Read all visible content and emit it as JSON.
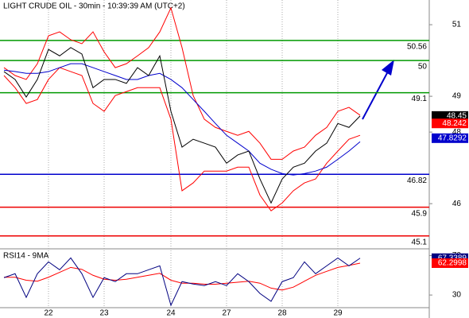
{
  "chart_data": [
    {
      "type": "line",
      "title": "LIGHT CRUDE OIL - 30min - 10:39:39 AM (UTC+2)",
      "categories": [
        null,
        null,
        null,
        null,
        "22",
        null,
        null,
        null,
        null,
        "23",
        null,
        null,
        null,
        null,
        null,
        "24",
        null,
        null,
        null,
        null,
        "27",
        null,
        null,
        null,
        null,
        "28",
        null,
        null,
        null,
        null,
        "29",
        null,
        null
      ],
      "series": [
        {
          "color": "#ff0000",
          "values": [
            49.8,
            49.58,
            49.47,
            49.91,
            50.69,
            50.8,
            50.58,
            50.47,
            50.8,
            50.24,
            49.8,
            49.91,
            50.13,
            50.36,
            50.8,
            51.47,
            50.36,
            49.02,
            48.36,
            48.13,
            48.02,
            47.91,
            48.02,
            47.69,
            47.24,
            47.24,
            47.47,
            47.58,
            47.91,
            48.13,
            48.58,
            48.69,
            48.47
          ]
        },
        {
          "color": "#ff0000",
          "values": [
            49.58,
            49.24,
            48.8,
            48.91,
            49.47,
            49.8,
            49.69,
            49.58,
            48.8,
            48.58,
            49.02,
            49.13,
            49.24,
            49.24,
            49.24,
            48.36,
            46.36,
            46.58,
            46.91,
            46.91,
            46.91,
            47.02,
            47.02,
            46.24,
            45.8,
            46.02,
            46.36,
            46.58,
            46.69,
            47.13,
            47.47,
            47.8,
            47.91
          ]
        },
        {
          "color": "#0000cc",
          "values": [
            49.73,
            49.69,
            49.64,
            49.64,
            49.69,
            49.8,
            49.91,
            49.91,
            49.8,
            49.69,
            49.58,
            49.47,
            49.47,
            49.58,
            49.64,
            49.47,
            49.24,
            48.91,
            48.58,
            48.24,
            47.91,
            47.69,
            47.47,
            47.13,
            46.96,
            46.84,
            46.8,
            46.84,
            46.91,
            47.02,
            47.24,
            47.47,
            47.73
          ]
        },
        {
          "color": "#000000",
          "values": [
            49.69,
            49.47,
            48.98,
            49.47,
            50.31,
            50.13,
            50.36,
            50.18,
            49.24,
            49.47,
            49.47,
            49.36,
            49.8,
            49.58,
            50.13,
            48.58,
            47.58,
            47.8,
            47.69,
            47.58,
            47.13,
            47.36,
            47.47,
            46.69,
            46.02,
            46.69,
            47.02,
            47.13,
            47.47,
            47.69,
            48.24,
            48.13,
            48.45
          ]
        }
      ],
      "ylim": [
        44.76,
        51.69
      ],
      "yticks": [
        46,
        48,
        49,
        51
      ],
      "levels": [
        {
          "value": 50.56,
          "color": "#009900"
        },
        {
          "value": 50,
          "color": "#009900"
        },
        {
          "value": 49.1,
          "color": "#009900"
        },
        {
          "value": 46.82,
          "color": "#0000cc"
        },
        {
          "value": 45.9,
          "color": "#ee0000"
        },
        {
          "value": 45.1,
          "color": "#ee0000"
        }
      ],
      "price_tags": [
        {
          "value": 48.45,
          "color": "#000000"
        },
        {
          "value": 48.242,
          "color": "#ff0000"
        },
        {
          "value": 47.8292,
          "color": "#0000cc"
        }
      ],
      "grid": true
    },
    {
      "type": "line",
      "title": "RSI14 - 9MA",
      "series": [
        {
          "color": "#ff0000",
          "values": [
            48,
            48,
            45,
            44,
            48,
            53,
            58,
            56,
            50,
            46,
            45,
            46,
            48,
            50,
            52,
            45,
            42,
            42,
            41,
            41,
            42,
            43,
            44,
            42,
            37,
            35,
            38,
            44,
            50,
            54,
            58,
            60,
            62.3
          ]
        },
        {
          "color": "#000080",
          "values": [
            47.6,
            51.6,
            27.6,
            51.6,
            63.6,
            55.6,
            67.6,
            51.6,
            27.6,
            47.6,
            43.6,
            51.6,
            51.6,
            55.6,
            59.6,
            19.6,
            43.6,
            41.2,
            39.6,
            43.6,
            39.6,
            51.6,
            43.6,
            31.6,
            23.6,
            43.6,
            47.6,
            63.6,
            51.6,
            59.6,
            67.6,
            59.6,
            67.34
          ]
        }
      ],
      "ylim": [
        18,
        76
      ],
      "yticks": [
        30,
        70
      ],
      "price_tags": [
        {
          "value": 67.3389,
          "color": "#000080"
        },
        {
          "value": 62.2998,
          "color": "#ff0000"
        }
      ]
    }
  ]
}
